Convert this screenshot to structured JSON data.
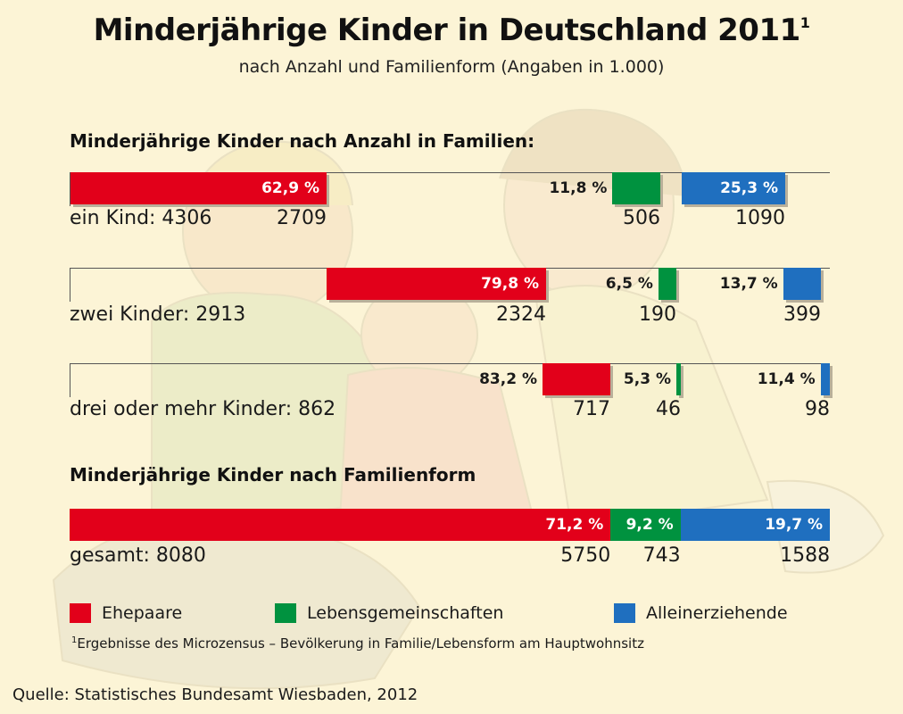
{
  "header": {
    "title": "Minderjährige Kinder in Deutschland 2011",
    "title_footnote_mark": "1",
    "subtitle": "nach Anzahl und Familienform (Angaben in 1.000)"
  },
  "colors": {
    "background": "#fcf4d6",
    "ehepaare": "#e2001a",
    "lebensgemeinschaften": "#00923f",
    "alleinerziehende": "#1f6fbf"
  },
  "chart_data": [
    {
      "type": "bar",
      "title": "Minderjährige Kinder nach Anzahl in Familien:",
      "categories": [
        "ein Kind: 4306",
        "zwei Kinder: 2913",
        "drei oder mehr Kinder: 862"
      ],
      "totals": [
        4306,
        2913,
        862
      ],
      "series": [
        {
          "name": "Ehepaare",
          "percent_labels": [
            "62,9 %",
            "79,8 %",
            "83,2 %"
          ],
          "percent": [
            62.9,
            79.8,
            83.2
          ],
          "values": [
            2709,
            2324,
            717
          ]
        },
        {
          "name": "Lebensgemeinschaften",
          "percent_labels": [
            "11,8 %",
            "6,5 %",
            "5,3 %"
          ],
          "percent": [
            11.8,
            6.5,
            5.3
          ],
          "values": [
            506,
            190,
            46
          ]
        },
        {
          "name": "Alleinerziehende",
          "percent_labels": [
            "25,3 %",
            "13,7 %",
            "11,4 %"
          ],
          "percent": [
            25.3,
            13.7,
            11.4
          ],
          "values": [
            1090,
            399,
            98
          ]
        }
      ]
    },
    {
      "type": "bar",
      "title": "Minderjährige Kinder nach Familienform",
      "categories": [
        "gesamt: 8080"
      ],
      "totals": [
        8080
      ],
      "series": [
        {
          "name": "Ehepaare",
          "percent_labels": [
            "71,2 %"
          ],
          "percent": [
            71.2
          ],
          "values": [
            5750
          ]
        },
        {
          "name": "Lebensgemeinschaften",
          "percent_labels": [
            "9,2 %"
          ],
          "percent": [
            9.2
          ],
          "values": [
            743
          ]
        },
        {
          "name": "Alleinerziehende",
          "percent_labels": [
            "19,7 %"
          ],
          "percent": [
            19.7
          ],
          "values": [
            1588
          ]
        }
      ]
    }
  ],
  "legend": {
    "items": [
      {
        "label": "Ehepaare",
        "color": "#e2001a"
      },
      {
        "label": "Lebensgemeinschaften",
        "color": "#00923f"
      },
      {
        "label": "Alleinerziehende",
        "color": "#1f6fbf"
      }
    ]
  },
  "footnote": {
    "mark": "1",
    "text": "Ergebnisse des Microzensus – Bevölkerung in Familie/Lebensform am Hauptwohnsitz"
  },
  "source": "Quelle: Statistisches Bundesamt Wiesbaden, 2012"
}
